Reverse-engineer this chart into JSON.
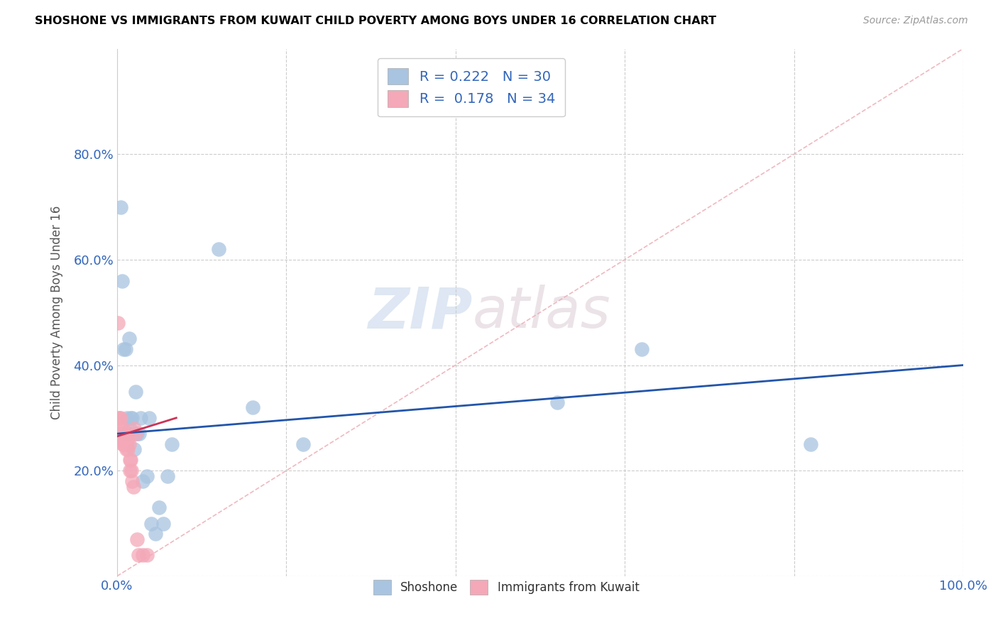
{
  "title": "SHOSHONE VS IMMIGRANTS FROM KUWAIT CHILD POVERTY AMONG BOYS UNDER 16 CORRELATION CHART",
  "source": "Source: ZipAtlas.com",
  "ylabel": "Child Poverty Among Boys Under 16",
  "xlim": [
    0,
    1.0
  ],
  "ylim": [
    0,
    1.0
  ],
  "shoshone_R": 0.222,
  "shoshone_N": 30,
  "kuwait_R": 0.178,
  "kuwait_N": 34,
  "shoshone_color": "#a8c4e0",
  "kuwait_color": "#f4a8b8",
  "shoshone_line_color": "#2255aa",
  "kuwait_line_color": "#cc3355",
  "diagonal_color": "#f0b0b8",
  "watermark_zip": "ZIP",
  "watermark_atlas": "atlas",
  "shoshone_x": [
    0.004,
    0.006,
    0.008,
    0.01,
    0.012,
    0.013,
    0.014,
    0.015,
    0.016,
    0.018,
    0.02,
    0.022,
    0.024,
    0.026,
    0.028,
    0.03,
    0.035,
    0.038,
    0.04,
    0.045,
    0.05,
    0.055,
    0.06,
    0.065,
    0.12,
    0.16,
    0.22,
    0.52,
    0.62,
    0.82
  ],
  "shoshone_y": [
    0.7,
    0.56,
    0.43,
    0.43,
    0.3,
    0.27,
    0.45,
    0.28,
    0.3,
    0.3,
    0.24,
    0.35,
    0.27,
    0.27,
    0.3,
    0.18,
    0.19,
    0.3,
    0.1,
    0.08,
    0.13,
    0.1,
    0.19,
    0.25,
    0.62,
    0.32,
    0.25,
    0.33,
    0.43,
    0.25
  ],
  "kuwait_x": [
    0.001,
    0.002,
    0.002,
    0.003,
    0.004,
    0.005,
    0.005,
    0.006,
    0.006,
    0.007,
    0.007,
    0.008,
    0.008,
    0.009,
    0.009,
    0.01,
    0.011,
    0.011,
    0.012,
    0.013,
    0.013,
    0.014,
    0.015,
    0.015,
    0.016,
    0.017,
    0.018,
    0.019,
    0.02,
    0.022,
    0.024,
    0.025,
    0.03,
    0.035
  ],
  "kuwait_y": [
    0.48,
    0.27,
    0.3,
    0.3,
    0.3,
    0.27,
    0.27,
    0.26,
    0.28,
    0.28,
    0.25,
    0.27,
    0.25,
    0.26,
    0.25,
    0.25,
    0.25,
    0.24,
    0.26,
    0.26,
    0.24,
    0.25,
    0.22,
    0.2,
    0.22,
    0.2,
    0.18,
    0.17,
    0.28,
    0.27,
    0.07,
    0.04,
    0.04,
    0.04
  ]
}
